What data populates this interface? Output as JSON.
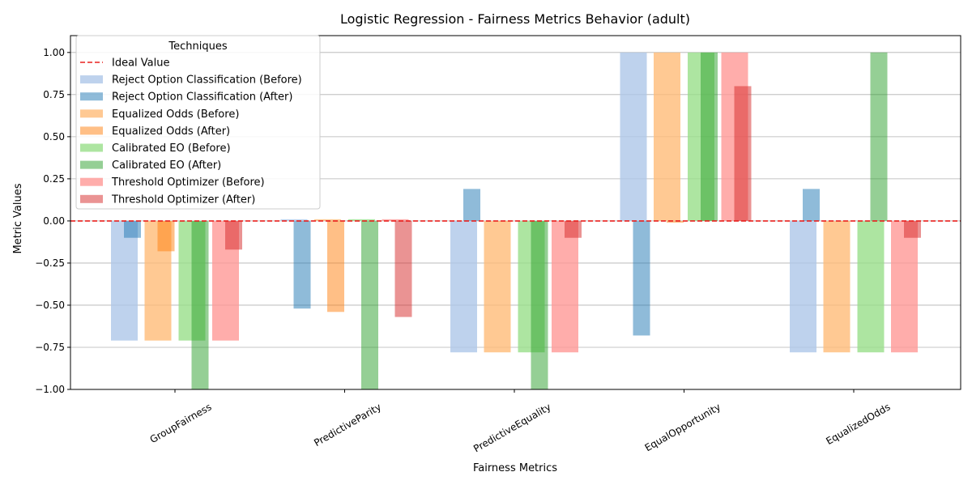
{
  "chart_data": {
    "type": "bar",
    "title": "Logistic Regression - Fairness Metrics Behavior (adult)",
    "xlabel": "Fairness Metrics",
    "ylabel": "Metric Values",
    "ylim": [
      -1.0,
      1.1
    ],
    "yticks": [
      -1.0,
      -0.75,
      -0.5,
      -0.25,
      0.0,
      0.25,
      0.5,
      0.75,
      1.0
    ],
    "ytick_labels": [
      "−1.00",
      "−0.75",
      "−0.50",
      "−0.25",
      "0.00",
      "0.25",
      "0.50",
      "0.75",
      "1.00"
    ],
    "grid": "horizontal",
    "legend_position": "upper-left",
    "legend_title": "Techniques",
    "categories": [
      "GroupFairness",
      "PredictiveParity",
      "PredictiveEquality",
      "EqualOpportunity",
      "EqualizedOdds"
    ],
    "ideal_value": {
      "name": "Ideal Value",
      "value": 0.0,
      "color": "#e8201e"
    },
    "series": [
      {
        "name": "Reject Option Classification (Before)",
        "color": "#aec7e8",
        "opacity": 0.8,
        "values": [
          -0.71,
          0.01,
          -0.78,
          1.0,
          -0.78
        ]
      },
      {
        "name": "Reject Option Classification (After)",
        "color": "#1f77b4",
        "opacity": 0.5,
        "values": [
          -0.1,
          -0.52,
          0.19,
          -0.68,
          0.19
        ]
      },
      {
        "name": "Equalized Odds (Before)",
        "color": "#ffbb78",
        "opacity": 0.8,
        "values": [
          -0.71,
          0.01,
          -0.78,
          1.0,
          -0.78
        ]
      },
      {
        "name": "Equalized Odds (After)",
        "color": "#ff7f0e",
        "opacity": 0.5,
        "values": [
          -0.18,
          -0.54,
          0.0,
          -0.01,
          0.0
        ]
      },
      {
        "name": "Calibrated EO (Before)",
        "color": "#98df8a",
        "opacity": 0.8,
        "values": [
          -0.71,
          0.01,
          -0.78,
          1.0,
          -0.78
        ]
      },
      {
        "name": "Calibrated EO (After)",
        "color": "#2ca02c",
        "opacity": 0.5,
        "values": [
          -1.0,
          -1.0,
          -1.0,
          1.0,
          1.0
        ]
      },
      {
        "name": "Threshold Optimizer (Before)",
        "color": "#ff9896",
        "opacity": 0.8,
        "values": [
          -0.71,
          0.01,
          -0.78,
          1.0,
          -0.78
        ]
      },
      {
        "name": "Threshold Optimizer (After)",
        "color": "#d62728",
        "opacity": 0.5,
        "values": [
          -0.17,
          -0.57,
          -0.1,
          0.8,
          -0.1
        ]
      }
    ]
  }
}
